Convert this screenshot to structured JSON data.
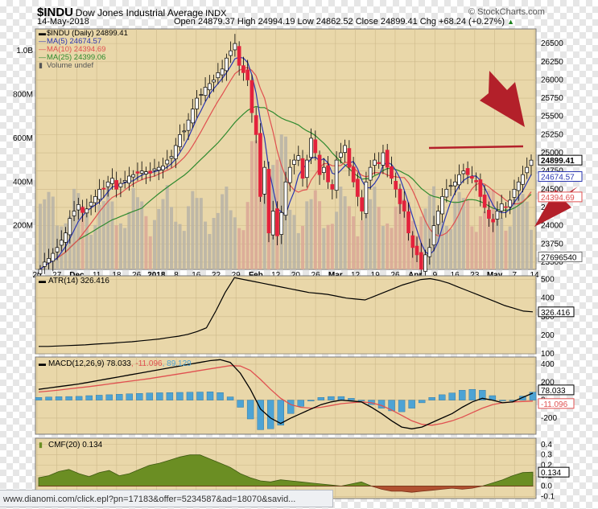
{
  "header": {
    "symbol": "$INDU",
    "name": "Dow Jones Industrial Average",
    "exchange": "INDX",
    "brand": "© StockCharts.com",
    "date": "14-May-2018",
    "ohlc": "Open 24879.37  High 24994.19  Low 24862.52  Close 24899.41  Chg +68.24 (+0.27%)",
    "change_arrow": "▲"
  },
  "legend": {
    "main": "$INDU (Daily) 24899.41",
    "ma5": "MA(5) 24674.57",
    "ma10": "MA(10) 24394.69",
    "ma25": "MA(25) 24399.06",
    "volume": "Volume undef"
  },
  "panels": {
    "atr_label": "ATR(14) 326.416",
    "macd_label": "MACD(12,26,9) 78.033",
    "macd_signal": ", -11.096",
    "macd_hist": ", 89.129",
    "cmf_label": "CMF(20) 0.134"
  },
  "status_bar": {
    "url": "www.dianomi.com/click.epl?pn=17183&offer=5234587&ad=18070&savid..."
  },
  "colors": {
    "panel_bg": "#e9d7a9",
    "up_candle": "#ffffff",
    "down_candle": "#e3223c",
    "ma5": "#2a36b1",
    "ma10": "#e05050",
    "ma25": "#2f8a2f",
    "volume": "#b7b3a7",
    "macd_hist": "#4da3d4",
    "cmf_pos": "#6b8e23",
    "cmf_neg": "#b05030",
    "annotation": "#b3202a"
  },
  "chart_data": [
    {
      "type": "candlestick",
      "title": "$INDU Dow Jones Industrial Average INDX",
      "x_tick_labels": [
        "20",
        "27",
        "Dec",
        "11",
        "18",
        "26",
        "2018",
        "8",
        "16",
        "22",
        "29",
        "Feb",
        "12",
        "20",
        "26",
        "Mar",
        "12",
        "19",
        "26",
        "Apr",
        "9",
        "16",
        "23",
        "May",
        "7",
        "14"
      ],
      "y_tick_labels": [
        "26500",
        "26250",
        "26000",
        "25750",
        "25500",
        "25250",
        "25000",
        "24750",
        "24500",
        "24250",
        "24000",
        "23750",
        "23500"
      ],
      "ylim": [
        23400,
        26700
      ],
      "close_series": [
        23400,
        23500,
        23550,
        23620,
        23700,
        23800,
        23900,
        24100,
        24200,
        24290,
        24180,
        24230,
        24320,
        24400,
        24500,
        24500,
        24600,
        24650,
        24500,
        24580,
        24620,
        24680,
        24700,
        24720,
        24750,
        24740,
        24720,
        24780,
        24800,
        24820,
        24900,
        24950,
        25100,
        25250,
        25300,
        25450,
        25600,
        25750,
        25800,
        25900,
        25950,
        26000,
        26100,
        26150,
        26300,
        26400,
        26500,
        26200,
        26100,
        26000,
        25550,
        25250,
        24400,
        24800,
        23900,
        24200,
        23860,
        24180,
        24600,
        24800,
        24900,
        24960,
        24650,
        24900,
        25200,
        25000,
        24700,
        24800,
        24600,
        24500,
        24900,
        25000,
        25100,
        24800,
        24600,
        24400,
        24200,
        24600,
        24800,
        24900,
        24850,
        25000,
        24800,
        24650,
        24500,
        24300,
        24200,
        23900,
        23700,
        23600,
        23400,
        23600,
        23700,
        24000,
        24200,
        24400,
        24500,
        24550,
        24600,
        24700,
        24750,
        24700,
        24650,
        24600,
        24400,
        24250,
        24100,
        24050,
        24200,
        24300,
        24250,
        24350,
        24500,
        24600,
        24700,
        24800,
        24899
      ],
      "ma_series": [
        {
          "name": "MA(5)",
          "last": 24674.57
        },
        {
          "name": "MA(10)",
          "last": 24394.69
        },
        {
          "name": "MA(25)",
          "last": 24399.06
        }
      ],
      "price_labels": [
        "24899.41",
        "24674.57",
        "24394.69"
      ]
    },
    {
      "type": "bar",
      "title": "Volume undef",
      "y_tick_labels": [
        "1.0B",
        "800M",
        "600M",
        "400M",
        "200M"
      ],
      "ylim": [
        0,
        1100000000
      ],
      "value_label": "27696540"
    },
    {
      "type": "line",
      "title": "ATR(14) 326.416",
      "y_tick_labels": [
        "500",
        "400",
        "300",
        "200",
        "100"
      ],
      "ylim": [
        100,
        520
      ],
      "values": [
        140,
        140,
        142,
        144,
        146,
        148,
        152,
        155,
        158,
        162,
        165,
        170,
        175,
        180,
        188,
        195,
        205,
        220,
        240,
        330,
        430,
        510,
        500,
        490,
        480,
        470,
        460,
        450,
        440,
        430,
        425,
        420,
        410,
        400,
        395,
        390,
        410,
        430,
        450,
        470,
        485,
        500,
        505,
        495,
        480,
        460,
        440,
        420,
        400,
        380,
        360,
        345,
        330,
        326
      ],
      "value_label": "326.416"
    },
    {
      "type": "line",
      "title": "MACD(12,26,9) 78.033, -11.096, 89.129",
      "y_tick_labels": [
        "400",
        "200",
        "0",
        "-200"
      ],
      "ylim": [
        -380,
        480
      ],
      "series": [
        {
          "name": "MACD(12,26,9)",
          "values": [
            120,
            135,
            150,
            165,
            180,
            200,
            220,
            240,
            260,
            280,
            300,
            320,
            340,
            360,
            380,
            400,
            420,
            440,
            450,
            420,
            300,
            120,
            -100,
            -200,
            -260,
            -200,
            -150,
            -100,
            -50,
            -20,
            0,
            -10,
            -20,
            -80,
            -150,
            -230,
            -300,
            -320,
            -300,
            -250,
            -200,
            -150,
            -80,
            -20,
            20,
            0,
            -30,
            -20,
            30,
            78
          ]
        },
        {
          "name": "Signal",
          "values": [
            90,
            100,
            112,
            125,
            138,
            150,
            165,
            180,
            195,
            210,
            225,
            240,
            258,
            276,
            294,
            312,
            330,
            348,
            366,
            384,
            380,
            330,
            230,
            120,
            20,
            -50,
            -80,
            -90,
            -80,
            -60,
            -40,
            -30,
            -20,
            -30,
            -60,
            -110,
            -170,
            -230,
            -270,
            -280,
            -260,
            -230,
            -190,
            -140,
            -90,
            -50,
            -30,
            -20,
            -15,
            -11
          ]
        },
        {
          "name": "Histogram",
          "values": [
            30,
            35,
            38,
            40,
            42,
            50,
            55,
            60,
            65,
            70,
            75,
            80,
            82,
            84,
            86,
            88,
            90,
            92,
            84,
            36,
            -80,
            -210,
            -330,
            -320,
            -280,
            -150,
            -70,
            -10,
            30,
            40,
            40,
            20,
            0,
            -50,
            -90,
            -120,
            -130,
            -90,
            -30,
            30,
            60,
            80,
            110,
            120,
            110,
            50,
            0,
            0,
            45,
            89
          ]
        }
      ],
      "value_labels": [
        "78.033",
        "-11.096"
      ]
    },
    {
      "type": "area",
      "title": "CMF(20) 0.134",
      "y_tick_labels": [
        "0.4",
        "0.3",
        "0.2",
        "0.1",
        "0.0",
        "-0.1"
      ],
      "ylim": [
        -0.12,
        0.46
      ],
      "values": [
        0.08,
        0.1,
        0.14,
        0.16,
        0.12,
        0.09,
        0.13,
        0.15,
        0.1,
        0.12,
        0.16,
        0.2,
        0.22,
        0.25,
        0.28,
        0.3,
        0.3,
        0.26,
        0.22,
        0.18,
        0.12,
        0.08,
        0.05,
        0.04,
        0.06,
        0.05,
        0.04,
        0.03,
        0.02,
        0.01,
        0.0,
        0.02,
        0.04,
        0.0,
        -0.03,
        -0.05,
        -0.05,
        -0.06,
        -0.05,
        -0.04,
        -0.03,
        -0.02,
        -0.03,
        -0.02,
        0.0,
        0.03,
        0.06,
        0.1,
        0.13,
        0.134
      ],
      "value_label": "0.134"
    }
  ]
}
